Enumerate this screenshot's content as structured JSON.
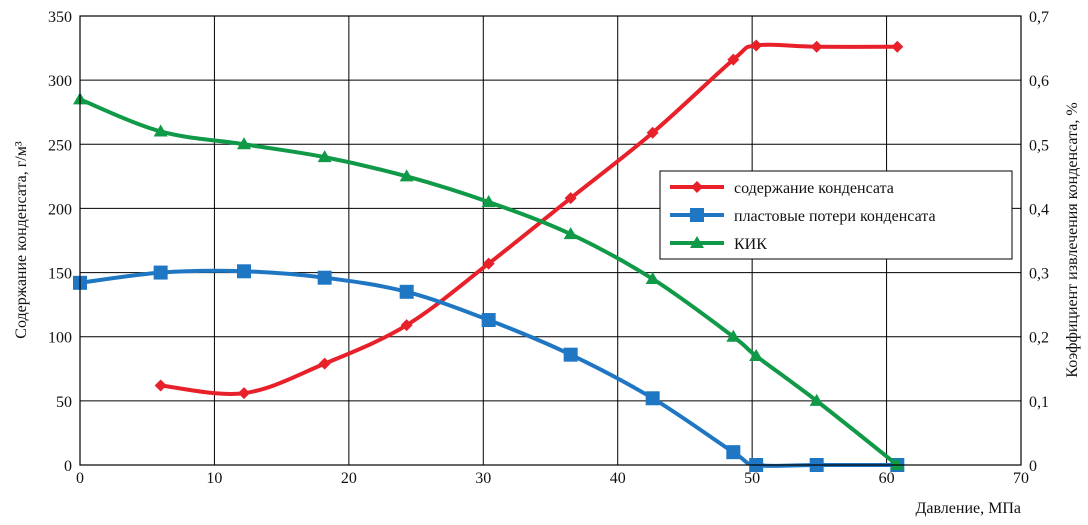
{
  "chart_data": {
    "type": "line",
    "xlabel": "Давление, МПа",
    "ylabel_left": "Содержание конденсата, г/м³",
    "ylabel_right": "Коэффициент извлечения конденсата, %",
    "xlim": [
      0,
      70
    ],
    "ylim_left": [
      0,
      350
    ],
    "ylim_right": [
      0,
      0.7
    ],
    "x_ticks": [
      "0",
      "10",
      "20",
      "30",
      "40",
      "50",
      "60",
      "70"
    ],
    "y_left_ticks": [
      "0",
      "50",
      "100",
      "150",
      "200",
      "250",
      "300",
      "350"
    ],
    "y_right_ticks": [
      "0",
      "0,1",
      "0,2",
      "0,3",
      "0,4",
      "0,5",
      "0,6",
      "0,7"
    ],
    "grid": true,
    "legend_position": "right",
    "series": [
      {
        "name": "содержание конденсата",
        "axis": "left",
        "color": "#e8202a",
        "marker": "diamond",
        "x": [
          6,
          12.2,
          18.2,
          24.3,
          30.4,
          36.5,
          42.6,
          48.6,
          50.3,
          54.8,
          60.8
        ],
        "y": [
          62,
          56,
          79,
          109,
          157,
          208,
          259,
          316,
          327,
          326,
          326
        ]
      },
      {
        "name": "пластовые потери конденсата",
        "axis": "left",
        "color": "#1f77c4",
        "marker": "square",
        "x": [
          0,
          6,
          12.2,
          18.2,
          24.3,
          30.4,
          36.5,
          42.6,
          48.6,
          50.3,
          54.8,
          60.8
        ],
        "y": [
          142,
          150,
          151,
          146,
          135,
          113,
          86,
          52,
          10,
          0,
          0,
          0
        ]
      },
      {
        "name": "КИК",
        "axis": "right",
        "color": "#109a48",
        "marker": "triangle",
        "x": [
          0,
          6,
          12.2,
          18.2,
          24.3,
          30.4,
          36.5,
          42.6,
          48.6,
          50.3,
          54.8,
          60.8
        ],
        "y": [
          0.57,
          0.52,
          0.5,
          0.48,
          0.45,
          0.41,
          0.36,
          0.29,
          0.2,
          0.17,
          0.1,
          0
        ]
      }
    ]
  }
}
